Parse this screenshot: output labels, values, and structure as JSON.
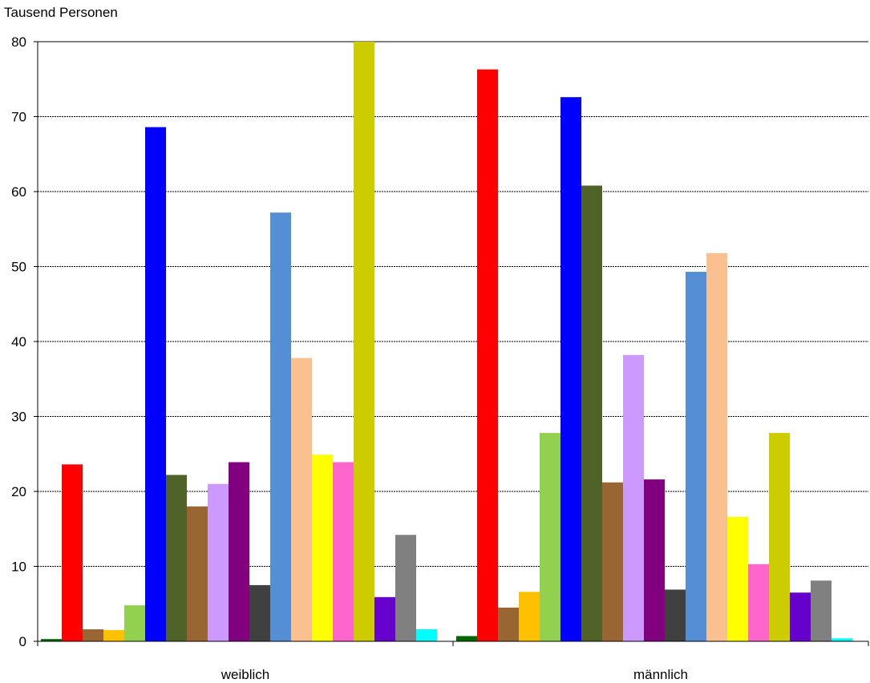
{
  "chart_data": {
    "type": "bar",
    "ylabel": "Tausend Personen",
    "categories": [
      "weiblich",
      "männlich"
    ],
    "ylim": [
      0,
      80
    ],
    "yticks": [
      0,
      10,
      20,
      30,
      40,
      50,
      60,
      70,
      80
    ],
    "grid": true,
    "legend": "none",
    "series": [
      {
        "color": "#006600",
        "values": [
          0.3,
          0.7
        ]
      },
      {
        "color": "#ff0000",
        "values": [
          23.6,
          76.3
        ]
      },
      {
        "color": "#996633",
        "values": [
          1.6,
          4.5
        ]
      },
      {
        "color": "#ffc000",
        "values": [
          1.5,
          6.6
        ]
      },
      {
        "color": "#92d050",
        "values": [
          4.8,
          27.8
        ]
      },
      {
        "color": "#0000ff",
        "values": [
          68.6,
          72.6
        ]
      },
      {
        "color": "#4f6228",
        "values": [
          22.2,
          60.8
        ]
      },
      {
        "color": "#996633",
        "values": [
          18.0,
          21.2
        ]
      },
      {
        "color": "#cc99ff",
        "values": [
          21.0,
          38.2
        ]
      },
      {
        "color": "#800080",
        "values": [
          23.9,
          21.6
        ]
      },
      {
        "color": "#404040",
        "values": [
          7.5,
          6.9
        ]
      },
      {
        "color": "#558ed5",
        "values": [
          57.2,
          49.3
        ]
      },
      {
        "color": "#fac090",
        "values": [
          37.8,
          51.8
        ]
      },
      {
        "color": "#ffff00",
        "values": [
          24.9,
          16.6
        ]
      },
      {
        "color": "#ff66cc",
        "values": [
          23.9,
          10.3
        ]
      },
      {
        "color": "#cccc00",
        "values": [
          80.0,
          27.8
        ]
      },
      {
        "color": "#6600cc",
        "values": [
          5.9,
          6.5
        ]
      },
      {
        "color": "#808080",
        "values": [
          14.2,
          8.1
        ]
      },
      {
        "color": "#00ffff",
        "values": [
          1.6,
          0.4
        ]
      }
    ]
  }
}
